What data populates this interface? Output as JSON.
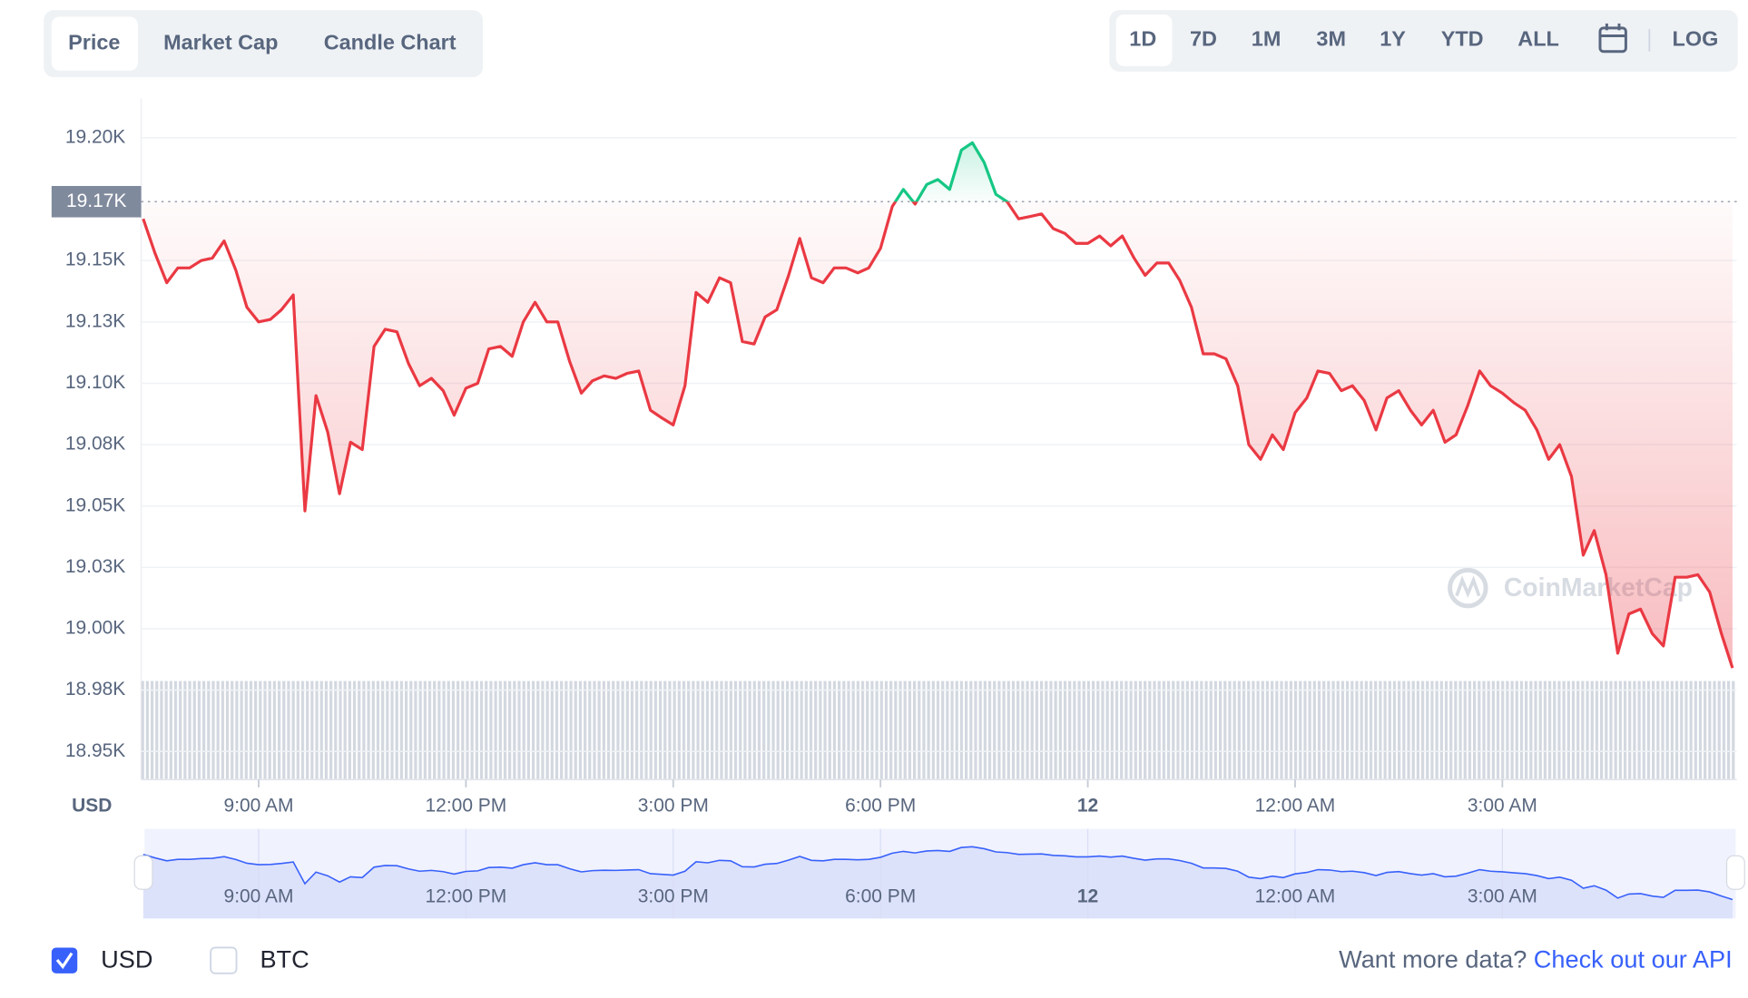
{
  "ui": {
    "tabs": [
      "Price",
      "Market Cap",
      "Candle Chart"
    ],
    "ranges": [
      "1D",
      "7D",
      "1M",
      "3M",
      "1Y",
      "YTD",
      "ALL"
    ],
    "log": "LOG",
    "currencies": [
      "BTC"
    ],
    "footer": {
      "text": "Want more data?",
      "link": "Check out our API"
    },
    "watermark": "CoinMarketCap"
  },
  "chart_data": {
    "type": "line",
    "y_label": "USD",
    "x": [
      7.33,
      7.5,
      7.67,
      7.83,
      8,
      8.17,
      8.33,
      8.5,
      8.67,
      8.83,
      9,
      9.17,
      9.33,
      9.5,
      9.67,
      9.83,
      10,
      10.17,
      10.33,
      10.5,
      10.67,
      10.83,
      11,
      11.17,
      11.33,
      11.5,
      11.67,
      11.83,
      12,
      12.17,
      12.33,
      12.5,
      12.67,
      12.83,
      13,
      13.17,
      13.33,
      13.5,
      13.67,
      13.83,
      14,
      14.17,
      14.33,
      14.5,
      14.67,
      14.83,
      15,
      15.17,
      15.33,
      15.5,
      15.67,
      15.83,
      16,
      16.17,
      16.33,
      16.5,
      16.67,
      16.83,
      17,
      17.17,
      17.33,
      17.5,
      17.67,
      17.83,
      18,
      18.17,
      18.33,
      18.5,
      18.67,
      18.83,
      19,
      19.17,
      19.33,
      19.5,
      19.67,
      19.83,
      20,
      20.17,
      20.33,
      20.5,
      20.67,
      20.83,
      21,
      21.17,
      21.33,
      21.5,
      21.67,
      21.83,
      22,
      22.17,
      22.33,
      22.5,
      22.67,
      22.83,
      23,
      23.17,
      23.33,
      23.5,
      23.67,
      23.83,
      24,
      24.17,
      24.33,
      24.5,
      24.67,
      24.83,
      25,
      25.17,
      25.33,
      25.5,
      25.67,
      25.83,
      26,
      26.17,
      26.33,
      26.5,
      26.67,
      26.83,
      27,
      27.17,
      27.33,
      27.5,
      27.67,
      27.83,
      28,
      28.17,
      28.33,
      28.5,
      28.67,
      28.83,
      29,
      29.17,
      29.33,
      29.5,
      29.67,
      29.83,
      30,
      30.17,
      30.33
    ],
    "series": [
      {
        "name": "USD",
        "color": "#ea3943",
        "up_color": "#16c784",
        "values": [
          19167,
          19153,
          19141,
          19147,
          19147,
          19150,
          19151,
          19158,
          19146,
          19131,
          19125,
          19126,
          19130,
          19136,
          19048,
          19095,
          19080,
          19055,
          19076,
          19073,
          19115,
          19122,
          19121,
          19108,
          19099,
          19102,
          19097,
          19087,
          19098,
          19100,
          19114,
          19115,
          19111,
          19125,
          19133,
          19125,
          19125,
          19109,
          19096,
          19101,
          19103,
          19102,
          19104,
          19105,
          19089,
          19086,
          19083,
          19099,
          19137,
          19133,
          19143,
          19141,
          19117,
          19116,
          19127,
          19130,
          19144,
          19159,
          19143,
          19141,
          19147,
          19147,
          19145,
          19147,
          19155,
          19172,
          19179,
          19173,
          19181,
          19183,
          19179,
          19195,
          19198,
          19190,
          19177,
          19174,
          19167,
          19168,
          19169,
          19163,
          19161,
          19157,
          19157,
          19160,
          19156,
          19160,
          19151,
          19144,
          19149,
          19149,
          19142,
          19131,
          19112,
          19112,
          19110,
          19099,
          19075,
          19069,
          19079,
          19073,
          19088,
          19094,
          19105,
          19104,
          19097,
          19099,
          19093,
          19081,
          19094,
          19097,
          19089,
          19083,
          19089,
          19076,
          19079,
          19091,
          19105,
          19099,
          19096,
          19092,
          19089,
          19081,
          19069,
          19075,
          19062,
          19030,
          19040,
          19022,
          18990,
          19006,
          19008,
          18998,
          18993,
          19021,
          19021,
          19022,
          19015,
          18998,
          18984
        ]
      }
    ],
    "reference_line": {
      "value": 19174,
      "label": "19.17K"
    },
    "xlim": [
      7.3,
      30.36
    ],
    "ylim": [
      18939,
      19216
    ],
    "xticks": [
      {
        "value": 9,
        "label": "9:00 AM"
      },
      {
        "value": 12,
        "label": "12:00 PM"
      },
      {
        "value": 15,
        "label": "3:00 PM"
      },
      {
        "value": 18,
        "label": "6:00 PM"
      },
      {
        "value": 21,
        "label": "12"
      },
      {
        "value": 24,
        "label": "12:00 AM"
      },
      {
        "value": 27,
        "label": "3:00 AM"
      }
    ],
    "yticks": [
      {
        "value": 19200,
        "label": "19.20K"
      },
      {
        "value": 19150,
        "label": "19.15K"
      },
      {
        "value": 19125,
        "label": "19.13K"
      },
      {
        "value": 19100,
        "label": "19.10K"
      },
      {
        "value": 19075,
        "label": "19.08K"
      },
      {
        "value": 19050,
        "label": "19.05K"
      },
      {
        "value": 19025,
        "label": "19.03K"
      },
      {
        "value": 19000,
        "label": "19.00K"
      },
      {
        "value": 18975,
        "label": "18.98K"
      },
      {
        "value": 18950,
        "label": "18.95K"
      }
    ],
    "grid": true
  }
}
